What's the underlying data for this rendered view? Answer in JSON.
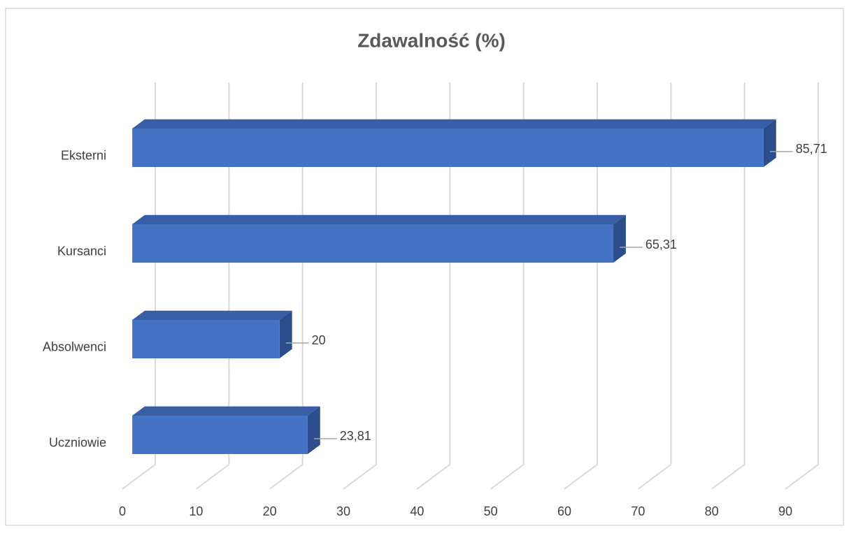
{
  "chart_data": {
    "type": "bar3d_horizontal",
    "title": "Zdawalność (%)",
    "categories": [
      "Eksterni",
      "Kursanci",
      "Absolwenci",
      "Uczniowie"
    ],
    "values": [
      85.71,
      65.31,
      20,
      23.81
    ],
    "value_labels": [
      "85,71",
      "65,31",
      "20",
      "23,81"
    ],
    "color": "#4472c4",
    "xlim": [
      0,
      90
    ],
    "xticks": [
      0,
      10,
      20,
      30,
      40,
      50,
      60,
      70,
      80,
      90
    ],
    "grid": true
  }
}
